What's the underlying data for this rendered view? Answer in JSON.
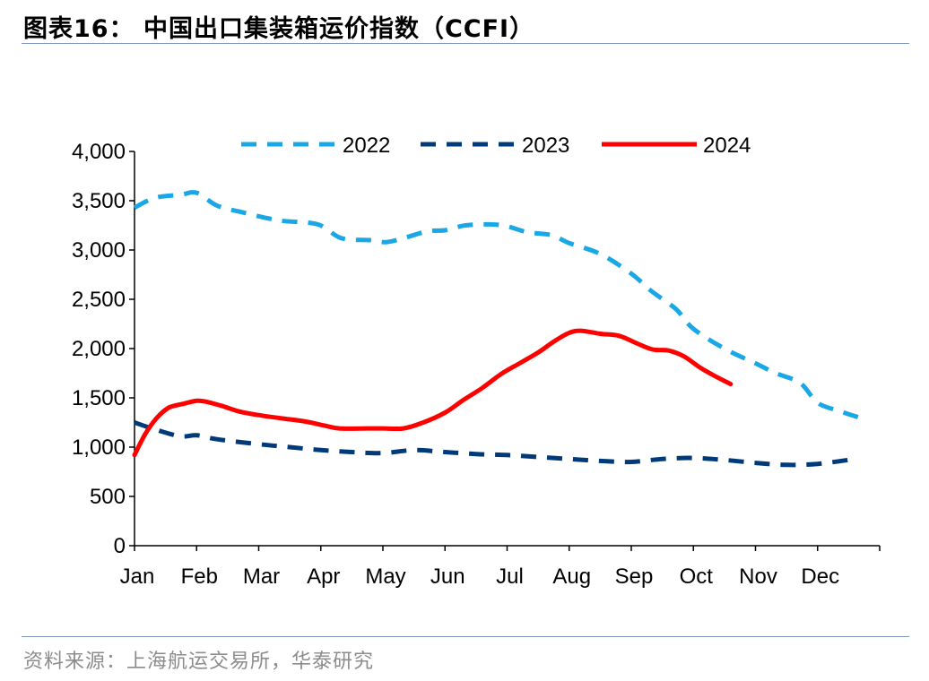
{
  "header": {
    "title": "图表16：  中国出口集装箱运价指数（CCFI）"
  },
  "footer": {
    "source": "资料来源：上海航运交易所，华泰研究"
  },
  "chart_data": {
    "type": "line",
    "title": "中国出口集装箱运价指数（CCFI）",
    "xlabel": "",
    "ylabel": "",
    "categories": [
      "Jan",
      "Feb",
      "Mar",
      "Apr",
      "May",
      "Jun",
      "Jul",
      "Aug",
      "Sep",
      "Oct",
      "Nov",
      "Dec"
    ],
    "x_range": [
      0,
      12
    ],
    "ylim": [
      0,
      4000
    ],
    "yticks": [
      0,
      500,
      1000,
      1500,
      2000,
      2500,
      3000,
      3500,
      4000
    ],
    "ytick_labels": [
      "0",
      "500",
      "1,000",
      "1,500",
      "2,000",
      "2,500",
      "3,000",
      "3,500",
      "4,000"
    ],
    "grid": false,
    "legend_position": "top-center",
    "series": [
      {
        "name": "2022",
        "color": "#1aa7e6",
        "style": "dashed",
        "x": [
          0,
          0.33,
          0.74,
          1.0,
          1.33,
          1.75,
          2.33,
          2.95,
          3.33,
          3.8,
          4.05,
          4.33,
          4.72,
          5.0,
          5.33,
          5.72,
          6.0,
          6.33,
          6.72,
          7.0,
          7.5,
          8.0,
          8.33,
          8.72,
          9.0,
          9.5,
          10.0,
          10.33,
          10.72,
          11.0,
          11.33,
          11.72
        ],
        "y": [
          3430,
          3530,
          3560,
          3580,
          3450,
          3380,
          3300,
          3260,
          3120,
          3100,
          3080,
          3120,
          3190,
          3200,
          3250,
          3260,
          3240,
          3180,
          3150,
          3070,
          2960,
          2760,
          2580,
          2400,
          2200,
          2000,
          1850,
          1750,
          1650,
          1450,
          1370,
          1290
        ]
      },
      {
        "name": "2023",
        "color": "#003a78",
        "style": "dashed",
        "x": [
          0,
          0.33,
          0.74,
          1.0,
          1.33,
          2.0,
          2.5,
          3.0,
          3.5,
          4.0,
          4.5,
          5.0,
          5.5,
          6.0,
          6.5,
          7.0,
          7.5,
          8.0,
          8.5,
          9.0,
          9.5,
          10.0,
          10.5,
          11.0,
          11.5
        ],
        "y": [
          1250,
          1180,
          1110,
          1120,
          1080,
          1030,
          1000,
          970,
          950,
          940,
          970,
          950,
          930,
          920,
          900,
          880,
          860,
          850,
          880,
          890,
          870,
          840,
          820,
          830,
          870
        ]
      },
      {
        "name": "2024",
        "color": "#ff0000",
        "style": "solid",
        "x": [
          0,
          0.17,
          0.35,
          0.55,
          0.79,
          1.0,
          1.16,
          1.4,
          1.7,
          2.05,
          2.4,
          2.75,
          3.05,
          3.3,
          3.75,
          4.0,
          4.33,
          4.65,
          5.0,
          5.3,
          5.6,
          5.9,
          6.2,
          6.5,
          6.75,
          7.0,
          7.2,
          7.5,
          7.8,
          8.1,
          8.35,
          8.6,
          8.85,
          9.1,
          9.35,
          9.6
        ],
        "y": [
          920,
          1130,
          1290,
          1400,
          1440,
          1470,
          1460,
          1420,
          1360,
          1320,
          1290,
          1260,
          1220,
          1190,
          1190,
          1190,
          1190,
          1250,
          1350,
          1480,
          1600,
          1740,
          1850,
          1960,
          2070,
          2160,
          2180,
          2150,
          2130,
          2050,
          1990,
          1980,
          1920,
          1810,
          1720,
          1640
        ]
      }
    ]
  }
}
